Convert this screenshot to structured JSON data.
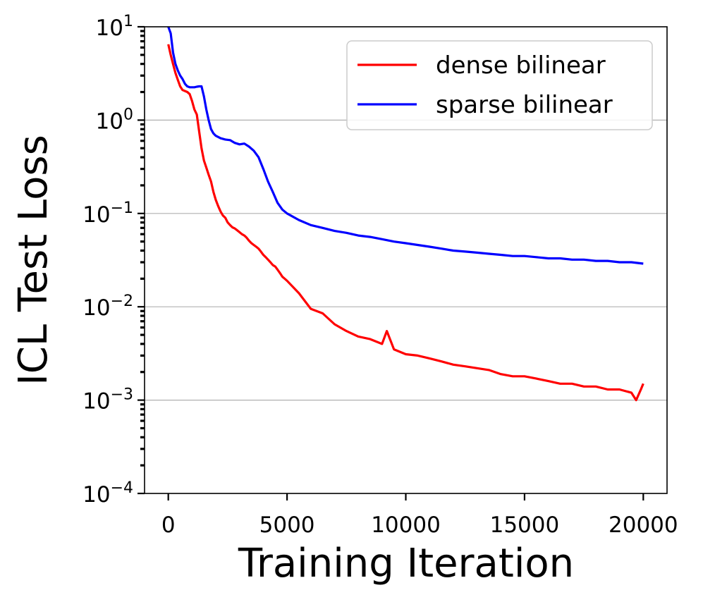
{
  "chart_data": {
    "type": "line",
    "xlabel": "Training Iteration",
    "ylabel": "ICL Test Loss",
    "xlim": [
      -1000,
      21000
    ],
    "ylim": [
      0.0001,
      10
    ],
    "yscale": "log",
    "x_ticks": [
      {
        "value": 0,
        "label": "0"
      },
      {
        "value": 5000,
        "label": "5000"
      },
      {
        "value": 10000,
        "label": "10000"
      },
      {
        "value": 15000,
        "label": "15000"
      },
      {
        "value": 20000,
        "label": "20000"
      }
    ],
    "y_ticks": [
      {
        "value": 10,
        "base": "10",
        "exp": "1"
      },
      {
        "value": 1,
        "base": "10",
        "exp": "0"
      },
      {
        "value": 0.1,
        "base": "10",
        "exp": "−1"
      },
      {
        "value": 0.01,
        "base": "10",
        "exp": "−2"
      },
      {
        "value": 0.001,
        "base": "10",
        "exp": "−3"
      },
      {
        "value": 0.0001,
        "base": "10",
        "exp": "−4"
      }
    ],
    "grid": "horizontal major lines",
    "legend_position": "top-right",
    "series": [
      {
        "name": "dense bilinear",
        "color": "#ff0000",
        "x": [
          0,
          100,
          200,
          300,
          400,
          500,
          600,
          700,
          800,
          900,
          1000,
          1100,
          1200,
          1300,
          1400,
          1500,
          1600,
          1700,
          1800,
          1900,
          2000,
          2100,
          2200,
          2300,
          2400,
          2500,
          2600,
          2700,
          2800,
          2900,
          3000,
          3100,
          3200,
          3300,
          3400,
          3500,
          3600,
          3700,
          3800,
          3900,
          4000,
          4100,
          4200,
          4300,
          4400,
          4500,
          4600,
          4700,
          4800,
          4900,
          5000,
          5500,
          6000,
          6500,
          7000,
          7500,
          8000,
          8500,
          9000,
          9200,
          9500,
          10000,
          10500,
          11000,
          11500,
          12000,
          12500,
          13000,
          13500,
          14000,
          14500,
          15000,
          15500,
          16000,
          16500,
          17000,
          17500,
          18000,
          18500,
          19000,
          19500,
          19700,
          19900,
          20000
        ],
        "y": [
          6.5,
          5.0,
          4.0,
          3.2,
          2.7,
          2.3,
          2.1,
          2.05,
          2.0,
          1.9,
          1.6,
          1.3,
          1.15,
          0.75,
          0.5,
          0.37,
          0.31,
          0.26,
          0.22,
          0.17,
          0.14,
          0.12,
          0.105,
          0.095,
          0.09,
          0.08,
          0.075,
          0.071,
          0.069,
          0.066,
          0.063,
          0.06,
          0.058,
          0.055,
          0.051,
          0.048,
          0.046,
          0.044,
          0.042,
          0.039,
          0.036,
          0.034,
          0.032,
          0.03,
          0.028,
          0.027,
          0.025,
          0.023,
          0.021,
          0.02,
          0.019,
          0.014,
          0.0095,
          0.0085,
          0.0065,
          0.0055,
          0.0048,
          0.0045,
          0.004,
          0.0055,
          0.0035,
          0.0031,
          0.003,
          0.0028,
          0.0026,
          0.0024,
          0.0023,
          0.0022,
          0.0021,
          0.0019,
          0.0018,
          0.0018,
          0.0017,
          0.0016,
          0.0015,
          0.0015,
          0.0014,
          0.0014,
          0.0013,
          0.0013,
          0.0012,
          0.001,
          0.0013,
          0.0015
        ]
      },
      {
        "name": "sparse bilinear",
        "color": "#0000ff",
        "x": [
          0,
          100,
          200,
          300,
          400,
          500,
          600,
          700,
          800,
          900,
          1000,
          1100,
          1200,
          1300,
          1400,
          1500,
          1600,
          1700,
          1800,
          1900,
          2000,
          2200,
          2400,
          2600,
          2800,
          3000,
          3200,
          3400,
          3600,
          3800,
          4000,
          4200,
          4400,
          4600,
          4800,
          5000,
          5500,
          6000,
          6500,
          7000,
          7500,
          8000,
          8500,
          9000,
          9500,
          10000,
          10500,
          11000,
          11500,
          12000,
          12500,
          13000,
          13500,
          14000,
          14500,
          15000,
          15500,
          16000,
          16500,
          17000,
          17500,
          18000,
          18500,
          19000,
          19500,
          20000
        ],
        "y": [
          10.0,
          8.5,
          5.3,
          4.0,
          3.4,
          3.0,
          2.75,
          2.45,
          2.3,
          2.25,
          2.25,
          2.25,
          2.28,
          2.3,
          2.3,
          1.8,
          1.3,
          1.0,
          0.8,
          0.72,
          0.68,
          0.64,
          0.62,
          0.61,
          0.57,
          0.55,
          0.56,
          0.52,
          0.47,
          0.4,
          0.3,
          0.22,
          0.17,
          0.13,
          0.11,
          0.1,
          0.085,
          0.075,
          0.07,
          0.065,
          0.062,
          0.058,
          0.056,
          0.053,
          0.05,
          0.048,
          0.046,
          0.044,
          0.042,
          0.04,
          0.039,
          0.038,
          0.037,
          0.036,
          0.035,
          0.035,
          0.034,
          0.033,
          0.033,
          0.032,
          0.032,
          0.031,
          0.031,
          0.03,
          0.03,
          0.029
        ]
      }
    ]
  }
}
